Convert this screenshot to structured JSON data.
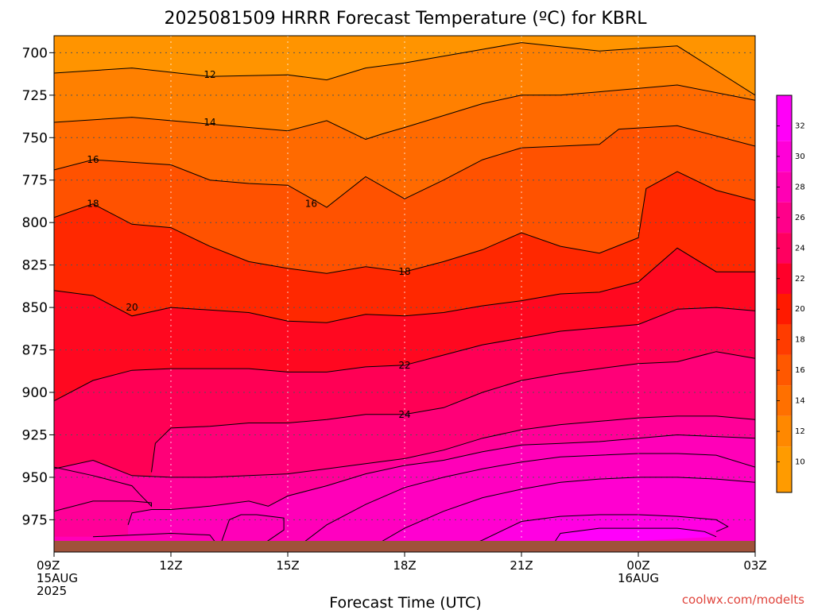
{
  "chart_data": {
    "type": "heatmap",
    "title": "2025081509 HRRR Forecast Temperature (ºC) for KBRL",
    "xlabel": "Forecast Time (UTC)",
    "ylabel": "",
    "credit": "coolwx.com/modelts",
    "x_ticks": [
      {
        "hour": 0,
        "lines": [
          "09Z",
          "15AUG",
          "2025"
        ]
      },
      {
        "hour": 3,
        "lines": [
          "12Z"
        ]
      },
      {
        "hour": 6,
        "lines": [
          "15Z"
        ]
      },
      {
        "hour": 9,
        "lines": [
          "18Z"
        ]
      },
      {
        "hour": 12,
        "lines": [
          "21Z"
        ]
      },
      {
        "hour": 15,
        "lines": [
          "00Z",
          "16AUG"
        ]
      },
      {
        "hour": 18,
        "lines": [
          "03Z"
        ]
      }
    ],
    "y_ticks": [
      700,
      725,
      750,
      775,
      800,
      825,
      850,
      875,
      900,
      925,
      950,
      975
    ],
    "y_range": [
      690,
      994
    ],
    "x_range": [
      0,
      18
    ],
    "grid": true,
    "colorbar": {
      "ticks": [
        10,
        12,
        14,
        16,
        18,
        20,
        22,
        24,
        26,
        28,
        30,
        32
      ],
      "colors": [
        "#ff9b00",
        "#ff8800",
        "#ff7000",
        "#ff5800",
        "#ff3c00",
        "#ff1a00",
        "#ff002a",
        "#ff0060",
        "#ff008a",
        "#ff00b4",
        "#ff00d8",
        "#ff00f8"
      ],
      "range": [
        8,
        34
      ]
    },
    "ground_color": "#a0523a",
    "contours": [
      {
        "label": "12",
        "points": [
          [
            0,
            712
          ],
          [
            2,
            709
          ],
          [
            4,
            714
          ],
          [
            6,
            713
          ],
          [
            7,
            716
          ],
          [
            8,
            709
          ],
          [
            9,
            706
          ],
          [
            11,
            698
          ],
          [
            12,
            694
          ],
          [
            14,
            699
          ],
          [
            16,
            696
          ],
          [
            18,
            725
          ]
        ]
      },
      {
        "label": "14",
        "points": [
          [
            0,
            741
          ],
          [
            2,
            738
          ],
          [
            4,
            742
          ],
          [
            6,
            746
          ],
          [
            7,
            740
          ],
          [
            8,
            751
          ],
          [
            8.4,
            748
          ],
          [
            9,
            744
          ],
          [
            11,
            730
          ],
          [
            12,
            725
          ],
          [
            13,
            725
          ],
          [
            14,
            723
          ],
          [
            16,
            719
          ],
          [
            18,
            728
          ]
        ]
      },
      {
        "label": "16",
        "points": [
          [
            0,
            769
          ],
          [
            1,
            763
          ],
          [
            3,
            766
          ],
          [
            4,
            775
          ],
          [
            5,
            777
          ],
          [
            6,
            778
          ],
          [
            7,
            791
          ],
          [
            8,
            773
          ],
          [
            9,
            786
          ],
          [
            10,
            775
          ],
          [
            11,
            763
          ],
          [
            12,
            756
          ],
          [
            13,
            755
          ],
          [
            14,
            754
          ],
          [
            14.5,
            745
          ],
          [
            16,
            743
          ],
          [
            18,
            755
          ]
        ]
      },
      {
        "label": "18",
        "points": [
          [
            0,
            797
          ],
          [
            1,
            789
          ],
          [
            2,
            801
          ],
          [
            3,
            803
          ],
          [
            4,
            814
          ],
          [
            5,
            823
          ],
          [
            6,
            827
          ],
          [
            7,
            830
          ],
          [
            8,
            826
          ],
          [
            9,
            829
          ],
          [
            10,
            823
          ],
          [
            11,
            816
          ],
          [
            12,
            806
          ],
          [
            13,
            814
          ],
          [
            14,
            818
          ],
          [
            15,
            809
          ],
          [
            15.2,
            780
          ],
          [
            16,
            770
          ],
          [
            17,
            781
          ],
          [
            18,
            787
          ]
        ]
      },
      {
        "label": "20",
        "points": [
          [
            0,
            840
          ],
          [
            1,
            843
          ],
          [
            2,
            855
          ],
          [
            3,
            850
          ],
          [
            5,
            853
          ],
          [
            6,
            858
          ],
          [
            7,
            859
          ],
          [
            8,
            854
          ],
          [
            9,
            855
          ],
          [
            10,
            853
          ],
          [
            11,
            849
          ],
          [
            12,
            846
          ],
          [
            13,
            842
          ],
          [
            14,
            841
          ],
          [
            15,
            835
          ],
          [
            16,
            815
          ],
          [
            17,
            829
          ],
          [
            18,
            829
          ]
        ]
      },
      {
        "label": "22",
        "points": [
          [
            0,
            905
          ],
          [
            1,
            893
          ],
          [
            2,
            887
          ],
          [
            3,
            886
          ],
          [
            5,
            886
          ],
          [
            6,
            888
          ],
          [
            7,
            888
          ],
          [
            8,
            885
          ],
          [
            9,
            884
          ],
          [
            10,
            878
          ],
          [
            11,
            872
          ],
          [
            12,
            868
          ],
          [
            13,
            864
          ],
          [
            14,
            862
          ],
          [
            15,
            860
          ],
          [
            16,
            851
          ],
          [
            17,
            850
          ],
          [
            18,
            852
          ]
        ]
      },
      {
        "label": "24",
        "points": [
          [
            2.5,
            947
          ],
          [
            2.6,
            930
          ],
          [
            3,
            921
          ],
          [
            4,
            920
          ],
          [
            5,
            918
          ],
          [
            6,
            918
          ],
          [
            7,
            916
          ],
          [
            8,
            913
          ],
          [
            9,
            913
          ],
          [
            10,
            909
          ],
          [
            11,
            900
          ],
          [
            12,
            893
          ],
          [
            13,
            889
          ],
          [
            14,
            886
          ],
          [
            15,
            883
          ],
          [
            16,
            882
          ],
          [
            17,
            876
          ],
          [
            18,
            880
          ]
        ]
      },
      {
        "label": "",
        "points": [
          [
            0,
            945
          ],
          [
            1,
            940
          ],
          [
            2,
            949
          ],
          [
            3,
            950
          ],
          [
            4,
            950
          ],
          [
            6,
            948
          ],
          [
            7,
            945
          ],
          [
            8,
            942
          ],
          [
            9,
            939
          ],
          [
            10,
            934
          ],
          [
            11,
            927
          ],
          [
            12,
            922
          ],
          [
            13,
            919
          ],
          [
            14,
            917
          ],
          [
            15,
            915
          ],
          [
            16,
            914
          ],
          [
            17,
            914
          ],
          [
            18,
            916
          ]
        ]
      },
      {
        "label": "",
        "points": [
          [
            1.9,
            978
          ],
          [
            2,
            971
          ],
          [
            2.5,
            969
          ],
          [
            3,
            969
          ],
          [
            4,
            967
          ],
          [
            5,
            964
          ],
          [
            5.5,
            967
          ],
          [
            6,
            961
          ],
          [
            7,
            955
          ],
          [
            8,
            948
          ],
          [
            9,
            943
          ],
          [
            10,
            940
          ],
          [
            11,
            935
          ],
          [
            12,
            931
          ],
          [
            13,
            930
          ],
          [
            14,
            929
          ],
          [
            15,
            927
          ],
          [
            16,
            925
          ],
          [
            17,
            926
          ],
          [
            18,
            927
          ]
        ]
      },
      {
        "label": "",
        "points": [
          [
            0,
            970
          ],
          [
            1,
            964
          ],
          [
            2,
            964
          ],
          [
            2.5,
            965
          ],
          [
            2.5,
            967
          ],
          [
            2.2,
            960
          ],
          [
            2,
            955
          ],
          [
            1,
            949
          ],
          [
            0,
            944
          ]
        ]
      },
      {
        "label": "",
        "points": [
          [
            1,
            985
          ],
          [
            2,
            984
          ],
          [
            3,
            983
          ],
          [
            4,
            984
          ],
          [
            4.2,
            990
          ]
        ]
      },
      {
        "label": "",
        "points": [
          [
            5.2,
            992
          ],
          [
            5.9,
            981
          ],
          [
            5.9,
            974
          ],
          [
            5.2,
            972
          ],
          [
            4.8,
            972
          ],
          [
            4.5,
            975
          ],
          [
            4.3,
            988
          ]
        ]
      },
      {
        "label": "",
        "points": [
          [
            6.2,
            992
          ],
          [
            7,
            978
          ],
          [
            8,
            966
          ],
          [
            9,
            956
          ],
          [
            10,
            950
          ],
          [
            11,
            945
          ],
          [
            12,
            941
          ],
          [
            13,
            938
          ],
          [
            14,
            937
          ],
          [
            15,
            936
          ],
          [
            16,
            936
          ],
          [
            17,
            937
          ],
          [
            18,
            944
          ]
        ]
      },
      {
        "label": "",
        "points": [
          [
            8.1,
            992
          ],
          [
            9,
            980
          ],
          [
            10,
            970
          ],
          [
            11,
            962
          ],
          [
            12,
            957
          ],
          [
            13,
            953
          ],
          [
            14,
            951
          ],
          [
            15,
            950
          ],
          [
            16,
            950
          ],
          [
            17,
            951
          ],
          [
            18,
            953
          ]
        ]
      },
      {
        "label": "",
        "points": [
          [
            10.5,
            992
          ],
          [
            11,
            987
          ],
          [
            12,
            976
          ],
          [
            13,
            973
          ],
          [
            14,
            972
          ],
          [
            15,
            972
          ],
          [
            16,
            973
          ],
          [
            17,
            975
          ],
          [
            17.3,
            979
          ],
          [
            17,
            982
          ]
        ]
      },
      {
        "label": "",
        "points": [
          [
            12.8,
            990
          ],
          [
            13,
            983
          ],
          [
            14,
            980
          ],
          [
            15,
            980
          ],
          [
            16,
            980
          ],
          [
            16.7,
            982
          ],
          [
            17,
            985
          ]
        ]
      }
    ],
    "colored_regions": [
      {
        "level": 12,
        "top": [
          [
            0,
            690
          ],
          [
            18,
            690
          ]
        ],
        "bottom": [
          [
            0,
            712
          ],
          [
            2,
            709
          ],
          [
            4,
            714
          ],
          [
            6,
            713
          ],
          [
            7,
            716
          ],
          [
            8,
            709
          ],
          [
            9,
            706
          ],
          [
            11,
            698
          ],
          [
            12,
            694
          ],
          [
            14,
            699
          ],
          [
            16,
            696
          ],
          [
            18,
            725
          ]
        ]
      }
    ]
  }
}
